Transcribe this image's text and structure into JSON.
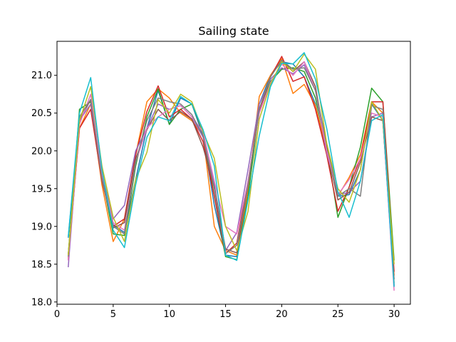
{
  "chart_data": {
    "type": "line",
    "title": "Sailing state",
    "xlabel": "",
    "ylabel": "",
    "xlim": [
      0.0,
      31.45
    ],
    "ylim": [
      17.97,
      21.45
    ],
    "xticks": [
      0,
      5,
      10,
      15,
      20,
      25,
      30
    ],
    "yticks": [
      18.0,
      18.5,
      19.0,
      19.5,
      20.0,
      20.5,
      21.0
    ],
    "grid": false,
    "legend": "none",
    "x": [
      1,
      2,
      3,
      4,
      5,
      6,
      7,
      8,
      9,
      10,
      11,
      12,
      13,
      14,
      15,
      16,
      17,
      18,
      19,
      20,
      21,
      22,
      23,
      24,
      25,
      26,
      27,
      28,
      29,
      30
    ],
    "series": [
      {
        "color": "#1f77b4",
        "values": [
          18.85,
          20.45,
          20.68,
          19.62,
          19.02,
          18.92,
          19.62,
          20.3,
          20.8,
          20.35,
          20.7,
          20.62,
          20.2,
          19.28,
          18.62,
          18.6,
          19.52,
          20.62,
          21.0,
          21.18,
          21.15,
          20.98,
          20.62,
          19.98,
          19.4,
          19.42,
          19.75,
          20.62,
          20.4,
          18.22
        ]
      },
      {
        "color": "#ff7f0e",
        "values": [
          18.58,
          20.3,
          20.62,
          19.55,
          18.8,
          19.1,
          19.95,
          20.65,
          20.82,
          20.7,
          20.5,
          20.4,
          20.2,
          19.0,
          18.68,
          18.62,
          19.48,
          20.72,
          21.0,
          21.22,
          20.76,
          20.88,
          20.6,
          20.02,
          19.4,
          19.65,
          19.95,
          20.65,
          20.5,
          18.35
        ]
      },
      {
        "color": "#2ca02c",
        "values": [
          18.62,
          20.55,
          20.65,
          19.65,
          18.9,
          18.88,
          19.8,
          20.45,
          20.82,
          20.35,
          20.55,
          20.62,
          20.25,
          19.4,
          18.6,
          18.56,
          19.4,
          20.55,
          20.92,
          21.08,
          21.1,
          21.05,
          20.7,
          20.05,
          19.12,
          19.52,
          20.05,
          20.83,
          20.65,
          18.55
        ]
      },
      {
        "color": "#d62728",
        "values": [
          18.55,
          20.3,
          20.55,
          19.6,
          19.0,
          19.1,
          19.95,
          20.52,
          20.86,
          20.45,
          20.55,
          20.42,
          20.12,
          19.4,
          18.64,
          18.78,
          19.6,
          20.52,
          20.98,
          21.25,
          20.92,
          20.98,
          20.55,
          19.95,
          19.2,
          19.52,
          19.9,
          20.65,
          20.65,
          18.4
        ]
      },
      {
        "color": "#9467bd",
        "values": [
          18.46,
          20.4,
          20.62,
          19.7,
          19.1,
          19.28,
          20.0,
          20.3,
          20.62,
          20.55,
          20.6,
          20.45,
          20.18,
          19.55,
          18.68,
          18.92,
          19.75,
          20.62,
          20.95,
          21.1,
          21.02,
          21.14,
          20.8,
          19.98,
          19.42,
          19.45,
          19.6,
          20.45,
          20.5,
          18.2
        ]
      },
      {
        "color": "#8c564b",
        "values": [
          18.62,
          20.4,
          20.68,
          19.65,
          18.98,
          19.05,
          19.9,
          20.28,
          20.55,
          20.4,
          20.52,
          20.42,
          20.05,
          19.52,
          18.7,
          18.65,
          19.55,
          20.55,
          20.98,
          21.2,
          21.05,
          21.18,
          20.85,
          20.02,
          19.35,
          19.45,
          19.85,
          20.45,
          20.4,
          18.3
        ]
      },
      {
        "color": "#e377c2",
        "values": [
          18.55,
          20.35,
          20.75,
          19.7,
          19.05,
          18.95,
          19.85,
          20.3,
          20.45,
          20.55,
          20.6,
          20.45,
          20.25,
          19.6,
          19.0,
          18.9,
          19.6,
          20.5,
          20.9,
          21.15,
          21.0,
          21.18,
          20.8,
          20.0,
          19.42,
          19.62,
          19.9,
          20.5,
          20.45,
          18.15
        ]
      },
      {
        "color": "#7f7f7f",
        "values": [
          18.6,
          20.45,
          20.68,
          19.62,
          19.0,
          18.9,
          19.85,
          20.4,
          20.7,
          20.65,
          20.62,
          20.48,
          20.2,
          19.5,
          18.64,
          18.75,
          19.55,
          20.55,
          20.98,
          21.2,
          21.08,
          21.1,
          20.8,
          20.1,
          19.4,
          19.5,
          19.4,
          20.6,
          20.55,
          18.25
        ]
      },
      {
        "color": "#bcbd22",
        "values": [
          18.62,
          20.4,
          20.85,
          19.8,
          19.12,
          18.8,
          19.62,
          19.98,
          20.68,
          20.5,
          20.75,
          20.65,
          20.25,
          19.9,
          19.0,
          18.68,
          19.2,
          20.42,
          20.88,
          21.18,
          21.05,
          21.28,
          21.08,
          20.1,
          19.5,
          19.32,
          19.75,
          20.65,
          20.4,
          18.5
        ]
      },
      {
        "color": "#17becf",
        "values": [
          18.86,
          20.5,
          20.97,
          19.75,
          18.95,
          18.72,
          19.55,
          20.18,
          20.45,
          20.4,
          20.72,
          20.62,
          20.28,
          19.8,
          18.62,
          18.55,
          19.35,
          20.2,
          20.85,
          21.16,
          21.15,
          21.3,
          20.95,
          20.3,
          19.46,
          19.12,
          19.6,
          20.4,
          20.48,
          18.2
        ]
      }
    ]
  }
}
